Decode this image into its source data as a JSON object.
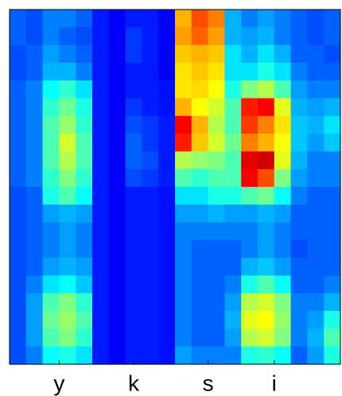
{
  "chart_data": {
    "type": "heatmap",
    "colormap": "jet",
    "zlim": [
      0,
      1
    ],
    "xlim": [
      0,
      20
    ],
    "xticks": [
      {
        "value": 3,
        "label": "y"
      },
      {
        "value": 7.5,
        "label": "k"
      },
      {
        "value": 12,
        "label": "s"
      },
      {
        "value": 16,
        "label": "i"
      }
    ],
    "values": [
      [
        0.22,
        0.2,
        0.25,
        0.25,
        0.22,
        0.15,
        0.12,
        0.15,
        0.15,
        0.12,
        0.7,
        0.8,
        0.75,
        0.3,
        0.25,
        0.28,
        0.25,
        0.22,
        0.2,
        0.22
      ],
      [
        0.22,
        0.2,
        0.25,
        0.22,
        0.2,
        0.15,
        0.12,
        0.18,
        0.15,
        0.12,
        0.72,
        0.78,
        0.72,
        0.3,
        0.28,
        0.3,
        0.25,
        0.22,
        0.2,
        0.22
      ],
      [
        0.2,
        0.22,
        0.28,
        0.25,
        0.22,
        0.15,
        0.12,
        0.18,
        0.15,
        0.12,
        0.68,
        0.7,
        0.68,
        0.35,
        0.3,
        0.35,
        0.3,
        0.22,
        0.22,
        0.2
      ],
      [
        0.2,
        0.22,
        0.3,
        0.3,
        0.25,
        0.15,
        0.12,
        0.15,
        0.15,
        0.12,
        0.65,
        0.68,
        0.65,
        0.35,
        0.35,
        0.4,
        0.35,
        0.25,
        0.22,
        0.22
      ],
      [
        0.22,
        0.25,
        0.38,
        0.42,
        0.35,
        0.15,
        0.12,
        0.15,
        0.15,
        0.14,
        0.65,
        0.66,
        0.62,
        0.4,
        0.5,
        0.55,
        0.45,
        0.28,
        0.25,
        0.25
      ],
      [
        0.22,
        0.25,
        0.42,
        0.48,
        0.4,
        0.15,
        0.12,
        0.18,
        0.15,
        0.14,
        0.7,
        0.62,
        0.58,
        0.45,
        0.85,
        0.88,
        0.6,
        0.3,
        0.28,
        0.3
      ],
      [
        0.22,
        0.25,
        0.45,
        0.52,
        0.42,
        0.15,
        0.12,
        0.2,
        0.18,
        0.15,
        0.88,
        0.7,
        0.55,
        0.45,
        0.82,
        0.75,
        0.65,
        0.32,
        0.3,
        0.35
      ],
      [
        0.22,
        0.25,
        0.45,
        0.58,
        0.45,
        0.15,
        0.12,
        0.22,
        0.18,
        0.15,
        0.85,
        0.68,
        0.58,
        0.48,
        0.75,
        0.7,
        0.62,
        0.32,
        0.28,
        0.32
      ],
      [
        0.22,
        0.25,
        0.45,
        0.55,
        0.45,
        0.15,
        0.12,
        0.22,
        0.2,
        0.15,
        0.55,
        0.52,
        0.5,
        0.45,
        0.9,
        0.92,
        0.6,
        0.3,
        0.25,
        0.25
      ],
      [
        0.22,
        0.25,
        0.42,
        0.5,
        0.42,
        0.15,
        0.12,
        0.2,
        0.18,
        0.15,
        0.45,
        0.42,
        0.45,
        0.45,
        0.88,
        0.8,
        0.5,
        0.28,
        0.25,
        0.25
      ],
      [
        0.2,
        0.22,
        0.4,
        0.45,
        0.38,
        0.15,
        0.12,
        0.15,
        0.15,
        0.14,
        0.35,
        0.35,
        0.4,
        0.4,
        0.45,
        0.48,
        0.38,
        0.25,
        0.22,
        0.22
      ],
      [
        0.2,
        0.22,
        0.28,
        0.3,
        0.28,
        0.15,
        0.12,
        0.15,
        0.15,
        0.14,
        0.28,
        0.28,
        0.3,
        0.28,
        0.28,
        0.3,
        0.28,
        0.22,
        0.22,
        0.22
      ],
      [
        0.2,
        0.22,
        0.25,
        0.28,
        0.25,
        0.15,
        0.12,
        0.15,
        0.15,
        0.14,
        0.25,
        0.25,
        0.25,
        0.25,
        0.25,
        0.28,
        0.25,
        0.22,
        0.22,
        0.22
      ],
      [
        0.2,
        0.22,
        0.25,
        0.28,
        0.25,
        0.15,
        0.12,
        0.15,
        0.15,
        0.14,
        0.25,
        0.22,
        0.22,
        0.22,
        0.25,
        0.28,
        0.25,
        0.2,
        0.22,
        0.22
      ],
      [
        0.2,
        0.22,
        0.28,
        0.3,
        0.28,
        0.15,
        0.12,
        0.15,
        0.15,
        0.14,
        0.25,
        0.22,
        0.22,
        0.22,
        0.3,
        0.32,
        0.28,
        0.22,
        0.22,
        0.22
      ],
      [
        0.2,
        0.25,
        0.35,
        0.38,
        0.32,
        0.15,
        0.12,
        0.15,
        0.15,
        0.14,
        0.25,
        0.22,
        0.22,
        0.25,
        0.4,
        0.45,
        0.38,
        0.22,
        0.22,
        0.25
      ],
      [
        0.2,
        0.28,
        0.45,
        0.5,
        0.42,
        0.15,
        0.12,
        0.15,
        0.15,
        0.14,
        0.25,
        0.22,
        0.22,
        0.28,
        0.55,
        0.58,
        0.5,
        0.25,
        0.25,
        0.3
      ],
      [
        0.2,
        0.28,
        0.48,
        0.52,
        0.45,
        0.15,
        0.12,
        0.15,
        0.15,
        0.14,
        0.25,
        0.22,
        0.22,
        0.3,
        0.6,
        0.62,
        0.52,
        0.25,
        0.28,
        0.4
      ],
      [
        0.2,
        0.28,
        0.45,
        0.5,
        0.42,
        0.15,
        0.12,
        0.15,
        0.15,
        0.14,
        0.25,
        0.22,
        0.22,
        0.28,
        0.55,
        0.58,
        0.5,
        0.25,
        0.3,
        0.45
      ],
      [
        0.2,
        0.25,
        0.38,
        0.4,
        0.35,
        0.15,
        0.12,
        0.15,
        0.15,
        0.14,
        0.28,
        0.25,
        0.25,
        0.25,
        0.4,
        0.42,
        0.38,
        0.22,
        0.28,
        0.4
      ]
    ]
  }
}
